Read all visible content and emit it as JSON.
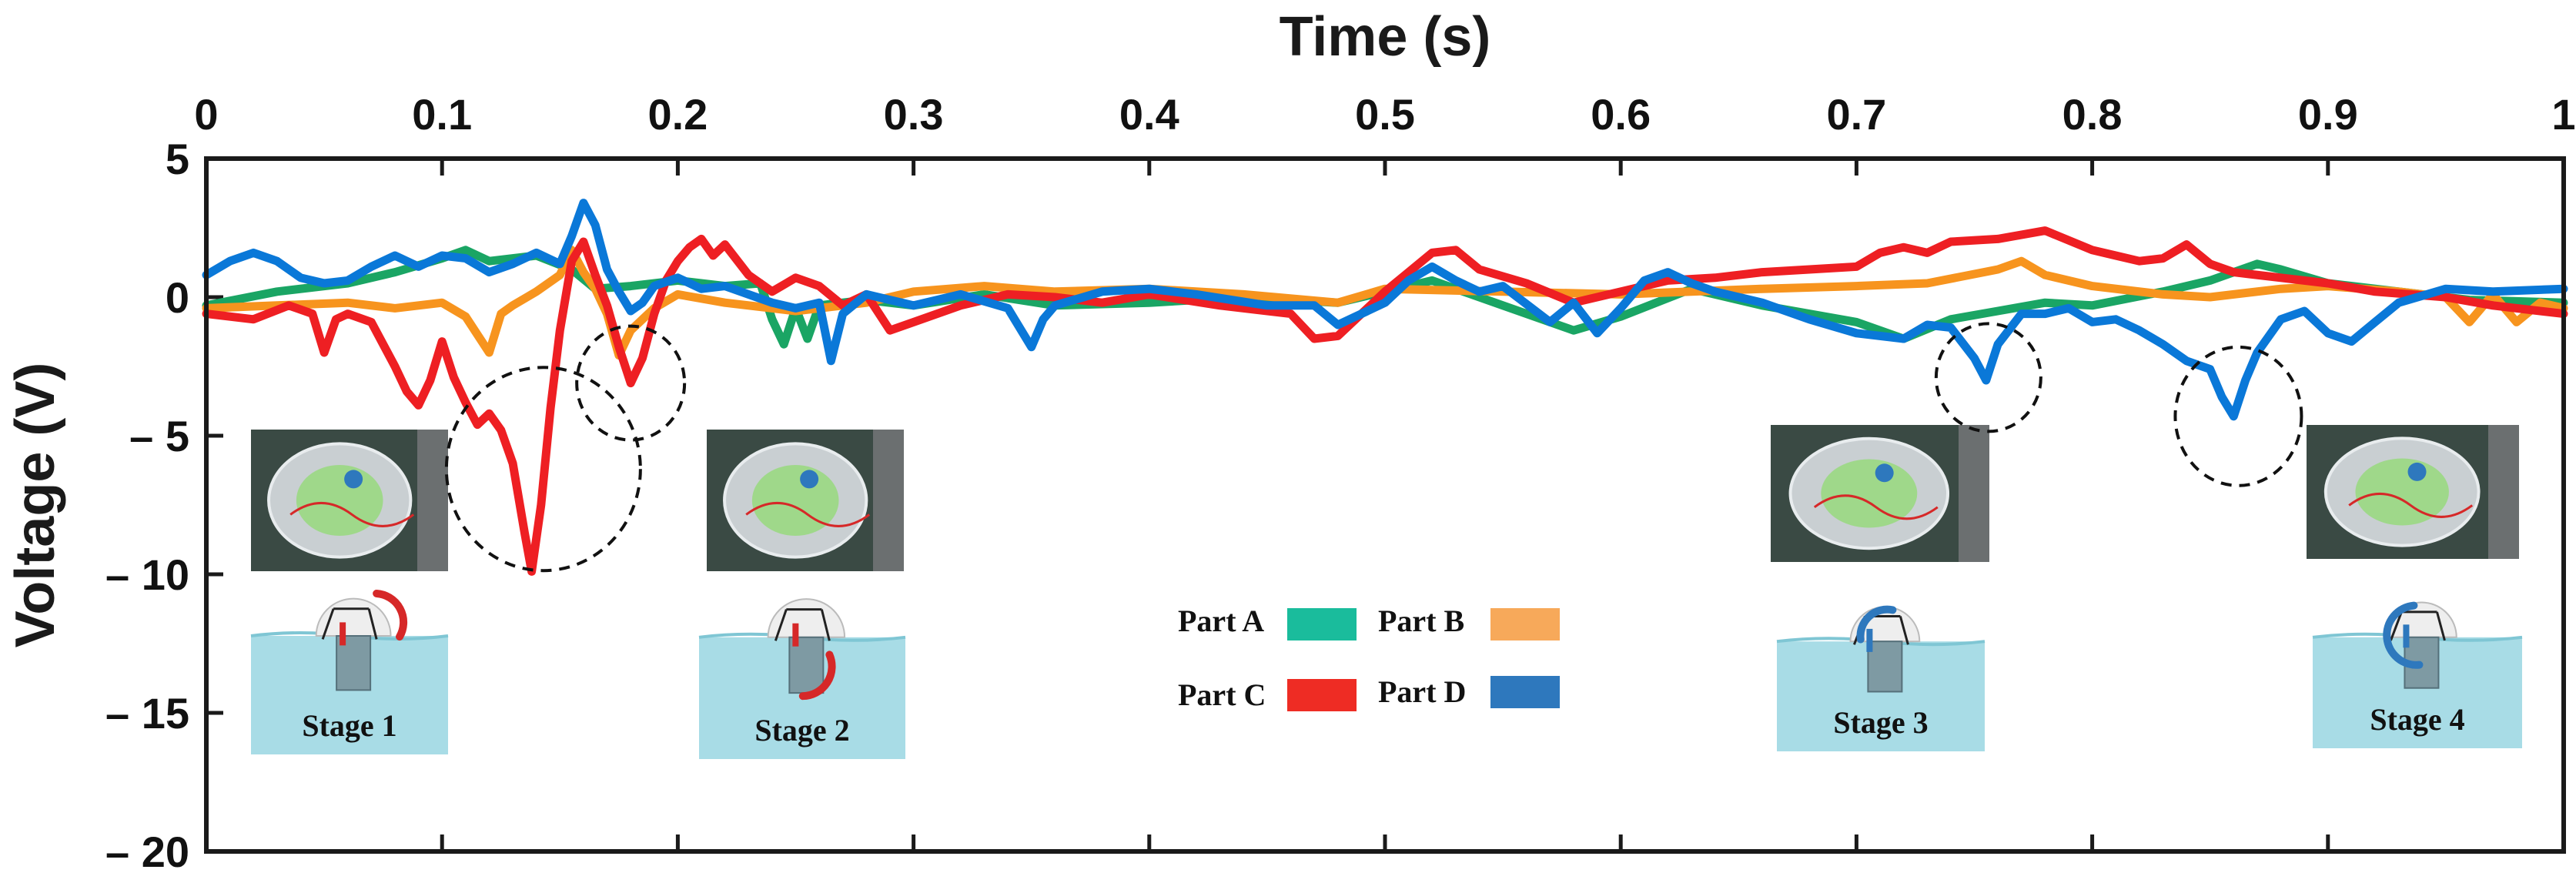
{
  "chart_data": {
    "type": "line",
    "title": "",
    "xlabel": "Time (s)",
    "ylabel": "Voltage (V)",
    "xlim": [
      0,
      1
    ],
    "ylim": [
      -20,
      5
    ],
    "x_ticks": [
      0,
      0.1,
      0.2,
      0.3,
      0.4,
      0.5,
      0.6,
      0.7,
      0.8,
      0.9,
      1
    ],
    "x_tick_labels": [
      "0",
      "0.1",
      "0.2",
      "0.3",
      "0.4",
      "0.5",
      "0.6",
      "0.7",
      "0.8",
      "0.9",
      "1"
    ],
    "y_ticks": [
      5,
      0,
      -5,
      -10,
      -15,
      -20
    ],
    "y_tick_labels": [
      "5",
      "0",
      "– 5",
      "– 10",
      "– 15",
      "– 20"
    ],
    "grid": false,
    "legend": [
      {
        "label": "Part A",
        "color": "#1abc9c"
      },
      {
        "label": "Part B",
        "color": "#f7a95a"
      },
      {
        "label": "Part C",
        "color": "#ee2c24"
      },
      {
        "label": "Part D",
        "color": "#2e78bd"
      }
    ],
    "series": [
      {
        "name": "Part A",
        "color": "#1aa564",
        "points": [
          [
            0,
            -0.3
          ],
          [
            0.03,
            0.2
          ],
          [
            0.06,
            0.5
          ],
          [
            0.08,
            0.9
          ],
          [
            0.1,
            1.4
          ],
          [
            0.11,
            1.7
          ],
          [
            0.12,
            1.3
          ],
          [
            0.14,
            1.5
          ],
          [
            0.155,
            1.0
          ],
          [
            0.165,
            0.3
          ],
          [
            0.18,
            0.4
          ],
          [
            0.2,
            0.6
          ],
          [
            0.22,
            0.4
          ],
          [
            0.235,
            0.5
          ],
          [
            0.24,
            -0.8
          ],
          [
            0.245,
            -1.7
          ],
          [
            0.25,
            -0.4
          ],
          [
            0.255,
            -1.5
          ],
          [
            0.26,
            -0.3
          ],
          [
            0.28,
            -0.1
          ],
          [
            0.3,
            -0.3
          ],
          [
            0.33,
            0.1
          ],
          [
            0.36,
            -0.3
          ],
          [
            0.4,
            -0.2
          ],
          [
            0.44,
            0.0
          ],
          [
            0.48,
            -0.2
          ],
          [
            0.5,
            0.2
          ],
          [
            0.52,
            0.6
          ],
          [
            0.55,
            -0.3
          ],
          [
            0.58,
            -1.2
          ],
          [
            0.6,
            -0.7
          ],
          [
            0.63,
            0.3
          ],
          [
            0.66,
            -0.3
          ],
          [
            0.7,
            -0.9
          ],
          [
            0.72,
            -1.5
          ],
          [
            0.74,
            -0.8
          ],
          [
            0.76,
            -0.5
          ],
          [
            0.78,
            -0.2
          ],
          [
            0.8,
            -0.3
          ],
          [
            0.83,
            0.2
          ],
          [
            0.85,
            0.6
          ],
          [
            0.87,
            1.2
          ],
          [
            0.88,
            1.0
          ],
          [
            0.9,
            0.5
          ],
          [
            0.93,
            0.2
          ],
          [
            0.96,
            -0.1
          ],
          [
            1,
            -0.2
          ]
        ]
      },
      {
        "name": "Part B",
        "color": "#f7941e",
        "points": [
          [
            0,
            -0.4
          ],
          [
            0.03,
            -0.3
          ],
          [
            0.06,
            -0.2
          ],
          [
            0.08,
            -0.4
          ],
          [
            0.1,
            -0.2
          ],
          [
            0.11,
            -0.7
          ],
          [
            0.12,
            -2.0
          ],
          [
            0.125,
            -0.6
          ],
          [
            0.13,
            -0.3
          ],
          [
            0.14,
            0.2
          ],
          [
            0.15,
            0.8
          ],
          [
            0.155,
            1.7
          ],
          [
            0.16,
            0.9
          ],
          [
            0.165,
            0.3
          ],
          [
            0.17,
            -0.6
          ],
          [
            0.175,
            -2.1
          ],
          [
            0.18,
            -1.2
          ],
          [
            0.19,
            -0.4
          ],
          [
            0.2,
            0.1
          ],
          [
            0.22,
            -0.2
          ],
          [
            0.25,
            -0.5
          ],
          [
            0.28,
            -0.2
          ],
          [
            0.3,
            0.2
          ],
          [
            0.33,
            0.4
          ],
          [
            0.36,
            0.2
          ],
          [
            0.4,
            0.3
          ],
          [
            0.44,
            0.1
          ],
          [
            0.48,
            -0.2
          ],
          [
            0.5,
            0.3
          ],
          [
            0.55,
            0.2
          ],
          [
            0.6,
            0.1
          ],
          [
            0.63,
            0.2
          ],
          [
            0.66,
            0.3
          ],
          [
            0.7,
            0.4
          ],
          [
            0.73,
            0.5
          ],
          [
            0.76,
            1.0
          ],
          [
            0.77,
            1.3
          ],
          [
            0.78,
            0.8
          ],
          [
            0.8,
            0.4
          ],
          [
            0.83,
            0.1
          ],
          [
            0.85,
            0.0
          ],
          [
            0.88,
            0.3
          ],
          [
            0.9,
            0.4
          ],
          [
            0.93,
            0.2
          ],
          [
            0.95,
            0.0
          ],
          [
            0.96,
            -0.9
          ],
          [
            0.97,
            0.1
          ],
          [
            0.98,
            -0.9
          ],
          [
            0.99,
            -0.2
          ],
          [
            1,
            -0.4
          ]
        ]
      },
      {
        "name": "Part C",
        "color": "#ee1f23",
        "points": [
          [
            0,
            -0.6
          ],
          [
            0.02,
            -0.8
          ],
          [
            0.035,
            -0.3
          ],
          [
            0.045,
            -0.6
          ],
          [
            0.05,
            -2.0
          ],
          [
            0.055,
            -0.8
          ],
          [
            0.06,
            -0.6
          ],
          [
            0.07,
            -0.9
          ],
          [
            0.08,
            -2.5
          ],
          [
            0.085,
            -3.4
          ],
          [
            0.09,
            -3.9
          ],
          [
            0.095,
            -3.0
          ],
          [
            0.1,
            -1.6
          ],
          [
            0.105,
            -2.9
          ],
          [
            0.11,
            -3.8
          ],
          [
            0.115,
            -4.6
          ],
          [
            0.12,
            -4.2
          ],
          [
            0.125,
            -4.8
          ],
          [
            0.13,
            -6.0
          ],
          [
            0.135,
            -8.5
          ],
          [
            0.138,
            -9.9
          ],
          [
            0.142,
            -7.5
          ],
          [
            0.146,
            -4.0
          ],
          [
            0.15,
            -1.2
          ],
          [
            0.155,
            1.3
          ],
          [
            0.16,
            2.0
          ],
          [
            0.165,
            0.8
          ],
          [
            0.17,
            -0.3
          ],
          [
            0.175,
            -1.8
          ],
          [
            0.18,
            -3.1
          ],
          [
            0.185,
            -2.2
          ],
          [
            0.19,
            -0.6
          ],
          [
            0.195,
            0.6
          ],
          [
            0.2,
            1.3
          ],
          [
            0.205,
            1.8
          ],
          [
            0.21,
            2.1
          ],
          [
            0.215,
            1.5
          ],
          [
            0.22,
            1.9
          ],
          [
            0.23,
            0.8
          ],
          [
            0.24,
            0.2
          ],
          [
            0.25,
            0.7
          ],
          [
            0.26,
            0.4
          ],
          [
            0.27,
            -0.3
          ],
          [
            0.28,
            0.1
          ],
          [
            0.29,
            -1.2
          ],
          [
            0.3,
            -0.9
          ],
          [
            0.32,
            -0.3
          ],
          [
            0.34,
            0.1
          ],
          [
            0.36,
            0.0
          ],
          [
            0.38,
            -0.2
          ],
          [
            0.4,
            0.1
          ],
          [
            0.43,
            -0.3
          ],
          [
            0.46,
            -0.6
          ],
          [
            0.47,
            -1.5
          ],
          [
            0.48,
            -1.4
          ],
          [
            0.49,
            -0.6
          ],
          [
            0.5,
            0.2
          ],
          [
            0.51,
            0.9
          ],
          [
            0.52,
            1.6
          ],
          [
            0.53,
            1.7
          ],
          [
            0.54,
            1.0
          ],
          [
            0.56,
            0.5
          ],
          [
            0.58,
            -0.2
          ],
          [
            0.6,
            0.2
          ],
          [
            0.62,
            0.6
          ],
          [
            0.64,
            0.7
          ],
          [
            0.66,
            0.9
          ],
          [
            0.68,
            1.0
          ],
          [
            0.7,
            1.1
          ],
          [
            0.71,
            1.6
          ],
          [
            0.72,
            1.8
          ],
          [
            0.73,
            1.6
          ],
          [
            0.74,
            2.0
          ],
          [
            0.76,
            2.1
          ],
          [
            0.78,
            2.4
          ],
          [
            0.8,
            1.7
          ],
          [
            0.81,
            1.5
          ],
          [
            0.82,
            1.3
          ],
          [
            0.83,
            1.4
          ],
          [
            0.84,
            1.9
          ],
          [
            0.85,
            1.2
          ],
          [
            0.86,
            0.9
          ],
          [
            0.88,
            0.7
          ],
          [
            0.9,
            0.5
          ],
          [
            0.92,
            0.2
          ],
          [
            0.95,
            0.0
          ],
          [
            0.97,
            -0.3
          ],
          [
            1,
            -0.6
          ]
        ]
      },
      {
        "name": "Part D",
        "color": "#0a78d8",
        "points": [
          [
            0,
            0.8
          ],
          [
            0.01,
            1.3
          ],
          [
            0.02,
            1.6
          ],
          [
            0.03,
            1.3
          ],
          [
            0.04,
            0.7
          ],
          [
            0.05,
            0.5
          ],
          [
            0.06,
            0.6
          ],
          [
            0.07,
            1.1
          ],
          [
            0.08,
            1.5
          ],
          [
            0.09,
            1.1
          ],
          [
            0.1,
            1.5
          ],
          [
            0.11,
            1.4
          ],
          [
            0.12,
            0.9
          ],
          [
            0.13,
            1.2
          ],
          [
            0.14,
            1.6
          ],
          [
            0.15,
            1.2
          ],
          [
            0.155,
            2.2
          ],
          [
            0.16,
            3.4
          ],
          [
            0.165,
            2.6
          ],
          [
            0.17,
            1.0
          ],
          [
            0.175,
            0.2
          ],
          [
            0.18,
            -0.5
          ],
          [
            0.185,
            -0.2
          ],
          [
            0.19,
            0.4
          ],
          [
            0.2,
            0.7
          ],
          [
            0.21,
            0.3
          ],
          [
            0.22,
            0.4
          ],
          [
            0.23,
            0.1
          ],
          [
            0.24,
            -0.2
          ],
          [
            0.25,
            -0.4
          ],
          [
            0.26,
            -0.2
          ],
          [
            0.265,
            -2.3
          ],
          [
            0.27,
            -0.6
          ],
          [
            0.28,
            0.1
          ],
          [
            0.3,
            -0.3
          ],
          [
            0.32,
            0.1
          ],
          [
            0.34,
            -0.4
          ],
          [
            0.35,
            -1.8
          ],
          [
            0.355,
            -0.8
          ],
          [
            0.36,
            -0.3
          ],
          [
            0.38,
            0.2
          ],
          [
            0.4,
            0.3
          ],
          [
            0.42,
            0.1
          ],
          [
            0.45,
            -0.3
          ],
          [
            0.47,
            -0.3
          ],
          [
            0.48,
            -1.0
          ],
          [
            0.49,
            -0.6
          ],
          [
            0.5,
            -0.2
          ],
          [
            0.51,
            0.6
          ],
          [
            0.52,
            1.1
          ],
          [
            0.53,
            0.6
          ],
          [
            0.54,
            0.2
          ],
          [
            0.55,
            0.4
          ],
          [
            0.57,
            -0.9
          ],
          [
            0.58,
            -0.2
          ],
          [
            0.59,
            -1.3
          ],
          [
            0.6,
            -0.4
          ],
          [
            0.61,
            0.6
          ],
          [
            0.62,
            0.9
          ],
          [
            0.63,
            0.5
          ],
          [
            0.64,
            0.2
          ],
          [
            0.66,
            -0.2
          ],
          [
            0.68,
            -0.8
          ],
          [
            0.7,
            -1.3
          ],
          [
            0.72,
            -1.5
          ],
          [
            0.73,
            -1.0
          ],
          [
            0.74,
            -1.1
          ],
          [
            0.75,
            -2.2
          ],
          [
            0.755,
            -3.0
          ],
          [
            0.76,
            -1.7
          ],
          [
            0.77,
            -0.6
          ],
          [
            0.78,
            -0.6
          ],
          [
            0.79,
            -0.4
          ],
          [
            0.8,
            -0.9
          ],
          [
            0.81,
            -0.8
          ],
          [
            0.82,
            -1.2
          ],
          [
            0.83,
            -1.7
          ],
          [
            0.84,
            -2.3
          ],
          [
            0.85,
            -2.6
          ],
          [
            0.855,
            -3.6
          ],
          [
            0.86,
            -4.3
          ],
          [
            0.865,
            -3.0
          ],
          [
            0.87,
            -2.0
          ],
          [
            0.88,
            -0.8
          ],
          [
            0.89,
            -0.5
          ],
          [
            0.9,
            -1.3
          ],
          [
            0.91,
            -1.6
          ],
          [
            0.92,
            -0.9
          ],
          [
            0.93,
            -0.2
          ],
          [
            0.95,
            0.3
          ],
          [
            0.97,
            0.2
          ],
          [
            1,
            0.3
          ]
        ]
      }
    ],
    "annotations": {
      "dashed_circles_around": [
        {
          "x": 0.143,
          "y": -6.2
        },
        {
          "x": 0.18,
          "y": -3.1
        },
        {
          "x": 0.756,
          "y": -2.9
        },
        {
          "x": 0.862,
          "y": -4.3
        }
      ],
      "stages": [
        {
          "label": "Stage 1",
          "arrow_color": "#d62828"
        },
        {
          "label": "Stage 2",
          "arrow_color": "#d62828"
        },
        {
          "label": "Stage 3",
          "arrow_color": "#2e78bd"
        },
        {
          "label": "Stage 4",
          "arrow_color": "#2e78bd"
        }
      ]
    }
  },
  "colors": {
    "axis": "#1a1a1a",
    "water": "#a8dce6",
    "water_line": "#7fc6d4",
    "photo_bg": "#3a4a44"
  }
}
